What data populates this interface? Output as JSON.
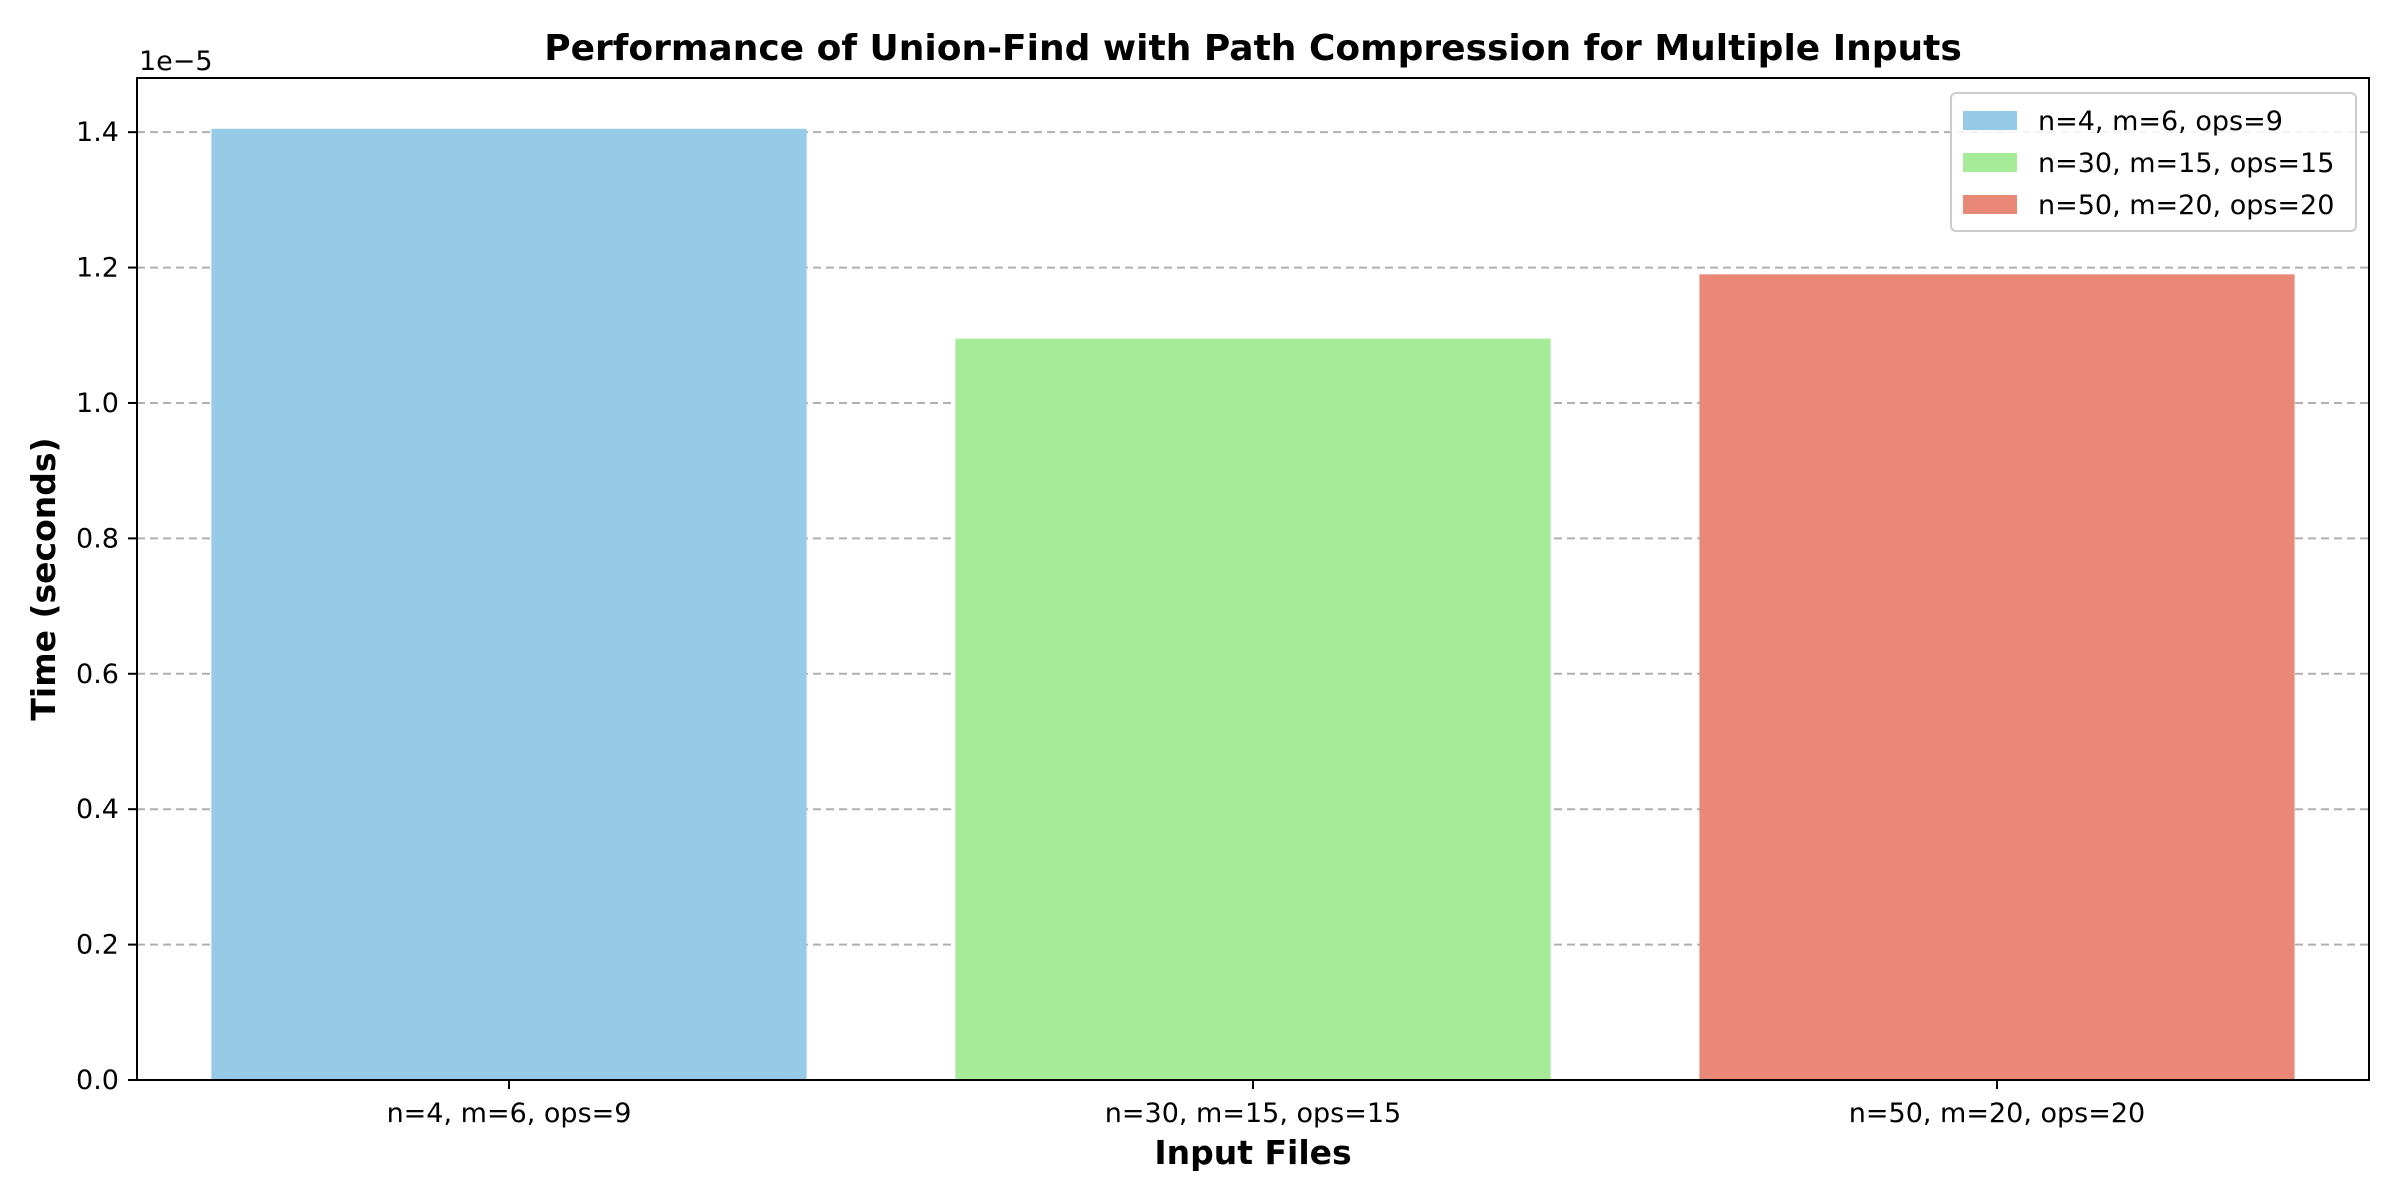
{
  "chart_data": {
    "type": "bar",
    "title": "Performance of Union-Find with Path Compression for Multiple Inputs",
    "xlabel": "Input Files",
    "ylabel": "Time (seconds)",
    "y_offset_label": "1e−5",
    "categories": [
      "n=4, m=6, ops=9",
      "n=30, m=15, ops=15",
      "n=50, m=20, ops=20"
    ],
    "values": [
      1.405,
      1.095,
      1.19
    ],
    "value_scale": "1e-5",
    "colors": [
      "#95cbe7",
      "#a6eb98",
      "#ea8878"
    ],
    "ylim": [
      0,
      1.48
    ],
    "yticks": [
      0.0,
      0.2,
      0.4,
      0.6,
      0.8,
      1.0,
      1.2,
      1.4
    ],
    "ytick_labels": [
      "0.0",
      "0.2",
      "0.4",
      "0.6",
      "0.8",
      "1.0",
      "1.2",
      "1.4"
    ],
    "grid": "y-dashed",
    "legend": {
      "placement": "top-right",
      "entries": [
        "n=4, m=6, ops=9",
        "n=30, m=15, ops=15",
        "n=50, m=20, ops=20"
      ]
    }
  }
}
